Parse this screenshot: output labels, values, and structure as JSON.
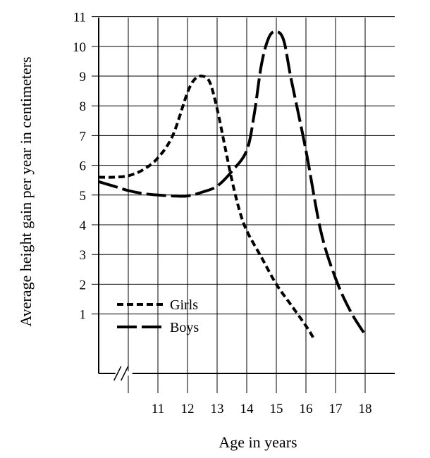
{
  "chart_data": {
    "type": "line",
    "xlabel": "Age in years",
    "ylabel": "Average height gain per year in centimeters",
    "x_ticks": [
      "11",
      "12",
      "13",
      "14",
      "15",
      "16",
      "17",
      "18"
    ],
    "y_ticks": [
      "1",
      "2",
      "3",
      "4",
      "5",
      "6",
      "7",
      "8",
      "9",
      "10",
      "11"
    ],
    "xlim": [
      9,
      19
    ],
    "ylim": [
      -1,
      12
    ],
    "axis_break": "//",
    "grid": true,
    "legend_position": "lower-left",
    "series": [
      {
        "name": "Girls",
        "style": "short-dash",
        "x": [
          9,
          9.5,
          10,
          10.5,
          11,
          11.5,
          12,
          12.25,
          12.5,
          12.75,
          13,
          13.25,
          13.5,
          13.75,
          14,
          14.5,
          15,
          15.5,
          16,
          16.25
        ],
        "y": [
          5.6,
          5.6,
          5.65,
          5.85,
          6.25,
          7.0,
          8.45,
          8.9,
          9.0,
          8.8,
          7.9,
          6.7,
          5.5,
          4.5,
          3.8,
          2.9,
          2.0,
          1.3,
          0.6,
          0.2
        ]
      },
      {
        "name": "Boys",
        "style": "long-dash",
        "x": [
          9,
          9.5,
          10,
          10.5,
          11,
          11.5,
          12,
          12.5,
          13,
          13.5,
          14,
          14.25,
          14.5,
          14.75,
          15,
          15.25,
          15.5,
          16,
          16.5,
          17,
          17.5,
          18
        ],
        "y": [
          5.45,
          5.3,
          5.15,
          5.05,
          5.0,
          4.97,
          4.97,
          5.1,
          5.3,
          5.8,
          6.5,
          7.7,
          9.4,
          10.3,
          10.5,
          10.2,
          8.9,
          6.5,
          3.8,
          2.2,
          1.1,
          0.3
        ]
      }
    ]
  }
}
